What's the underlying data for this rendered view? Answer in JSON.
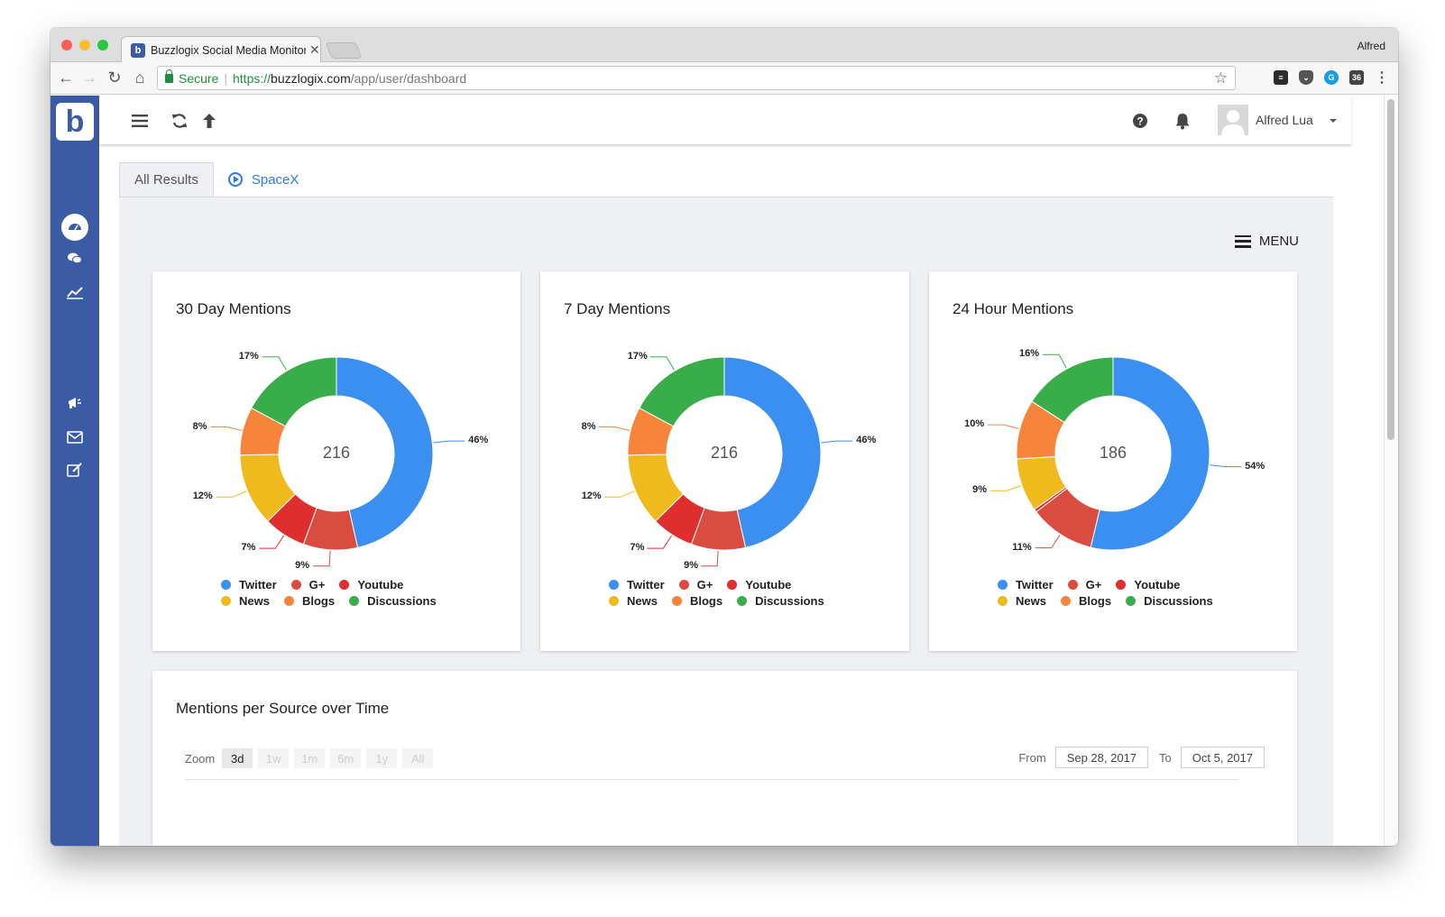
{
  "browser": {
    "tab_title": "Buzzlogix Social Media Monitor",
    "tab_favicon": "b",
    "profile": "Alfred",
    "secure_label": "Secure",
    "url_scheme": "https://",
    "url_host": "buzzlogix.com",
    "url_path": "/app/user/dashboard",
    "ext_badge": "36"
  },
  "app": {
    "logo_letter": "b",
    "user_name": "Alfred Lua",
    "menu_label": "MENU",
    "tabs": [
      {
        "label": "All Results"
      },
      {
        "label": "SpaceX"
      }
    ]
  },
  "colors": {
    "brand": "#3b5ba5",
    "twitter": "#3b8ff0",
    "gplus": "#d94c3f",
    "youtube": "#e02d2d",
    "news": "#f0b91c",
    "blogs": "#f7843b",
    "discussions": "#39ad4a"
  },
  "legend": {
    "twitter": "Twitter",
    "gplus": "G+",
    "youtube": "Youtube",
    "news": "News",
    "blogs": "Blogs",
    "discussions": "Discussions"
  },
  "chart_data": [
    {
      "type": "pie",
      "title": "30 Day Mentions",
      "total": "216",
      "labels": [
        "Twitter",
        "G+",
        "Youtube",
        "News",
        "Blogs",
        "Discussions"
      ],
      "values": [
        46,
        9,
        7,
        12,
        8,
        17
      ],
      "value_labels": [
        "46%",
        "9%",
        "7%",
        "12%",
        "8%",
        "17%"
      ]
    },
    {
      "type": "pie",
      "title": "7 Day Mentions",
      "total": "216",
      "labels": [
        "Twitter",
        "G+",
        "Youtube",
        "News",
        "Blogs",
        "Discussions"
      ],
      "values": [
        46,
        9,
        7,
        12,
        8,
        17
      ],
      "value_labels": [
        "46%",
        "9%",
        "7%",
        "12%",
        "8%",
        "17%"
      ]
    },
    {
      "type": "pie",
      "title": "24 Hour Mentions",
      "total": "186",
      "labels": [
        "Twitter",
        "G+",
        "Youtube",
        "News",
        "Blogs",
        "Discussions"
      ],
      "values": [
        54,
        11,
        0.5,
        9,
        10,
        16
      ],
      "value_labels": [
        "54%",
        "11%",
        "",
        "9%",
        "10%",
        "16%"
      ]
    }
  ],
  "timeline": {
    "title": "Mentions per Source over Time",
    "zoom_label": "Zoom",
    "zoom_options": [
      "3d",
      "1w",
      "1m",
      "6m",
      "1y",
      "All"
    ],
    "zoom_selected": "3d",
    "from_label": "From",
    "from_date": "Sep 28, 2017",
    "to_label": "To",
    "to_date": "Oct 5, 2017"
  }
}
